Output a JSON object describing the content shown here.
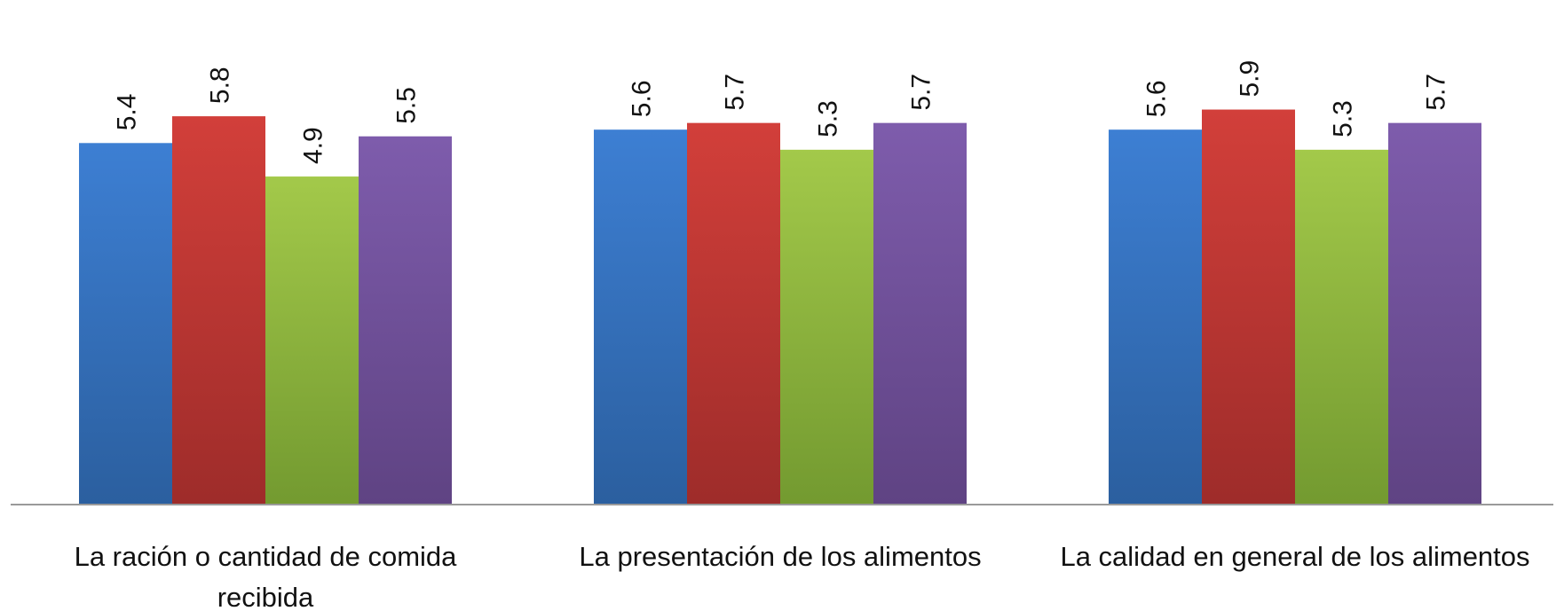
{
  "chart_data": {
    "type": "bar",
    "categories": [
      [
        "La ración o cantidad de comida",
        "recibida"
      ],
      [
        "La presentación de los alimentos"
      ],
      [
        "La calidad en general de los alimentos"
      ]
    ],
    "series": [
      {
        "values": [
          5.4,
          5.6,
          5.6
        ],
        "color": "#3a73c4"
      },
      {
        "values": [
          5.8,
          5.7,
          5.9
        ],
        "color": "#c43b37"
      },
      {
        "values": [
          4.9,
          5.3,
          5.3
        ],
        "color": "#8fb83f"
      },
      {
        "values": [
          5.5,
          5.7,
          5.7
        ],
        "color": "#6f4f9a"
      }
    ],
    "ylim": [
      0,
      6.5
    ],
    "grid": false,
    "legend": "none",
    "data_labels": true,
    "data_label_orientation": "rotated-vertical"
  }
}
